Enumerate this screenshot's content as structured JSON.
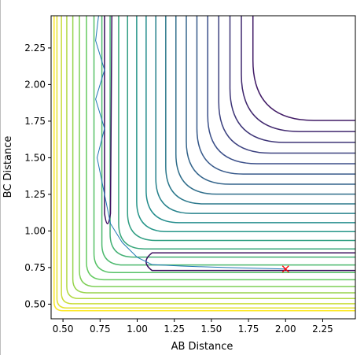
{
  "chart_data": {
    "type": "contour",
    "xlabel": "AB Distance",
    "ylabel": "BC Distance",
    "xlim": [
      0.42,
      2.47
    ],
    "ylim": [
      0.4,
      2.47
    ],
    "x_ticks": [
      "0.50",
      "0.75",
      "1.00",
      "1.25",
      "1.50",
      "1.75",
      "2.00",
      "2.25"
    ],
    "y_ticks": [
      "0.50",
      "0.75",
      "1.00",
      "1.25",
      "1.50",
      "1.75",
      "2.00",
      "2.25"
    ],
    "x_tick_values": [
      0.5,
      0.75,
      1.0,
      1.25,
      1.5,
      1.75,
      2.0,
      2.25
    ],
    "y_tick_values": [
      0.5,
      0.75,
      1.0,
      1.25,
      1.5,
      1.75,
      2.0,
      2.25
    ],
    "grid": false,
    "colormap": "viridis",
    "trajectory": {
      "color": "#1f77b4",
      "description_points": [
        [
          0.74,
          2.47
        ],
        [
          0.72,
          2.3
        ],
        [
          0.78,
          2.1
        ],
        [
          0.72,
          1.9
        ],
        [
          0.78,
          1.7
        ],
        [
          0.73,
          1.5
        ],
        [
          0.77,
          1.3
        ],
        [
          0.82,
          1.05
        ],
        [
          0.9,
          0.92
        ],
        [
          1.0,
          0.82
        ],
        [
          1.1,
          0.77
        ],
        [
          1.3,
          0.76
        ],
        [
          1.6,
          0.75
        ],
        [
          2.0,
          0.74
        ]
      ]
    },
    "end_marker": {
      "x": 2.0,
      "y": 0.74,
      "symbol": "x",
      "color": "#ff0000"
    }
  }
}
